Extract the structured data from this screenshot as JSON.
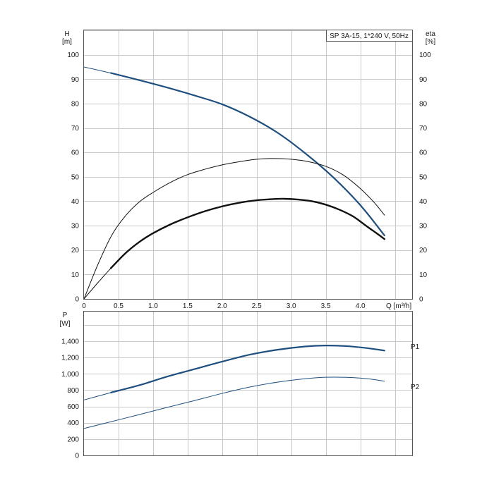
{
  "title": "SP 3A-15, 1*240 V, 50Hz",
  "colors": {
    "head": "#1f4f7f",
    "efficiency": "#111111",
    "power": "#1f4f7f",
    "series_label": "#1f4f7f"
  },
  "chart_data": [
    {
      "type": "line",
      "name": "pump-curve",
      "xlabel": "Q [m³/h]",
      "xlim": [
        0,
        4.75
      ],
      "x_ticks": [
        "0",
        "0.5",
        "1.0",
        "1.5",
        "2.0",
        "2.5",
        "3.0",
        "3.5",
        "4.0"
      ],
      "ylabel_left_name": "H",
      "ylabel_left_unit": "[m]",
      "ylim_left": [
        0,
        110
      ],
      "y_ticks_left": [
        "0",
        "10",
        "20",
        "30",
        "40",
        "50",
        "60",
        "70",
        "80",
        "90",
        "100"
      ],
      "ylabel_right_name": "eta",
      "ylabel_right_unit": "[%]",
      "ylim_right": [
        0,
        110
      ],
      "y_ticks_right": [
        "0",
        "10",
        "20",
        "30",
        "40",
        "50",
        "60",
        "70",
        "80",
        "90",
        "100"
      ],
      "grid": true,
      "series": [
        {
          "axis": "left",
          "role": "head-thin",
          "x": [
            0,
            0.39
          ],
          "y": [
            95,
            92.5
          ]
        },
        {
          "axis": "left",
          "role": "head",
          "x": [
            0.39,
            0.8,
            1.2,
            1.6,
            2.0,
            2.4,
            2.8,
            3.2,
            3.6,
            4.0,
            4.35
          ],
          "y": [
            92.5,
            89.6,
            86.6,
            83.3,
            79.7,
            74.6,
            68.1,
            59.7,
            50.0,
            38.4,
            26.0
          ]
        },
        {
          "axis": "left",
          "role": "total-efficiency",
          "x": [
            0,
            0.2,
            0.4,
            0.6,
            0.8,
            1.0,
            1.25,
            1.5,
            1.75,
            2.0,
            2.25,
            2.5,
            2.75,
            3.0,
            3.25,
            3.5,
            3.75,
            4.0,
            4.2,
            4.35
          ],
          "y": [
            0,
            14,
            26,
            34,
            39.7,
            43.6,
            47.7,
            50.9,
            53.1,
            54.9,
            56.2,
            57.2,
            57.5,
            57.2,
            56.2,
            54.3,
            50.8,
            45.2,
            39.5,
            34.3
          ]
        },
        {
          "axis": "left",
          "role": "hydraulic-efficiency-thin",
          "x": [
            0,
            0.2,
            0.39
          ],
          "y": [
            0,
            6.6,
            12.6
          ]
        },
        {
          "axis": "left",
          "role": "hydraulic-efficiency",
          "x": [
            0.39,
            0.6,
            0.8,
            1.0,
            1.25,
            1.5,
            1.75,
            2.0,
            2.25,
            2.5,
            2.75,
            2.9,
            3.1,
            3.3,
            3.5,
            3.7,
            3.9,
            4.1,
            4.25,
            4.35
          ],
          "y": [
            12.6,
            18.7,
            23.3,
            26.9,
            30.5,
            33.4,
            35.9,
            37.9,
            39.4,
            40.4,
            40.9,
            41.0,
            40.7,
            40.0,
            38.6,
            36.5,
            33.7,
            29.6,
            26.6,
            24.5
          ]
        }
      ]
    },
    {
      "type": "line",
      "name": "power-curve",
      "xlim": [
        0,
        4.75
      ],
      "ylabel_name": "P",
      "ylabel_unit": "[W]",
      "ylim": [
        0,
        1400
      ],
      "y_ticks": [
        "0",
        "200",
        "400",
        "600",
        "800",
        "1,000",
        "1,200",
        "1,400"
      ],
      "y_tick_values": [
        0,
        200,
        400,
        600,
        800,
        1000,
        1200,
        1400
      ],
      "grid": true,
      "series": [
        {
          "name": "P1",
          "role": "p1-thin",
          "x": [
            0,
            0.39
          ],
          "y": [
            680,
            770
          ]
        },
        {
          "name": "P1",
          "role": "p1",
          "label": "P1",
          "x": [
            0.39,
            0.8,
            1.2,
            1.6,
            2.0,
            2.4,
            2.8,
            3.2,
            3.5,
            3.8,
            4.1,
            4.35
          ],
          "y": [
            770,
            860,
            965,
            1058,
            1150,
            1235,
            1295,
            1335,
            1347,
            1340,
            1315,
            1285
          ]
        },
        {
          "name": "P2",
          "role": "p2",
          "label": "P2",
          "x": [
            0,
            0.4,
            0.8,
            1.2,
            1.6,
            2.0,
            2.4,
            2.8,
            3.2,
            3.5,
            3.8,
            4.1,
            4.35
          ],
          "y": [
            330,
            415,
            500,
            588,
            672,
            760,
            838,
            898,
            940,
            958,
            957,
            940,
            910
          ]
        }
      ]
    }
  ]
}
